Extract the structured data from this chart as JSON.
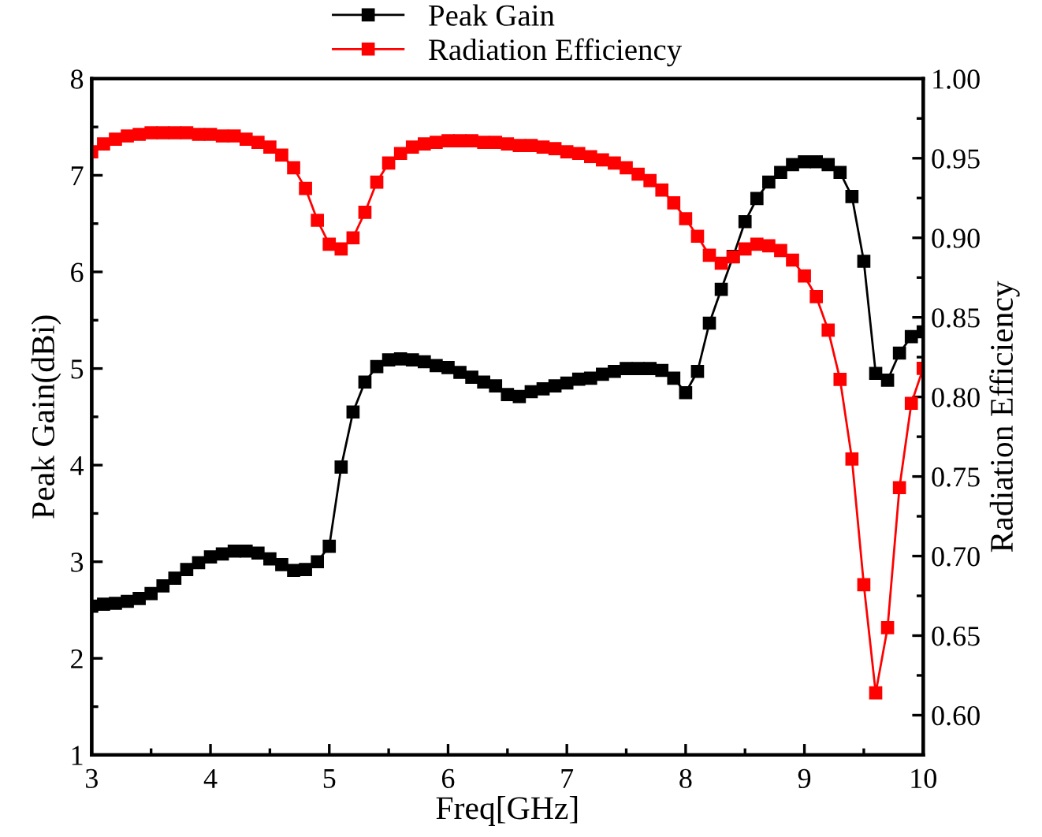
{
  "chart_data": {
    "type": "line",
    "xlabel": "Freq[GHz]",
    "ylabel": "Peak Gain(dBi)",
    "y2label": "Radiation Efficiency",
    "x": [
      3.0,
      3.1,
      3.2,
      3.3,
      3.4,
      3.5,
      3.6,
      3.7,
      3.8,
      3.9,
      4.0,
      4.1,
      4.2,
      4.3,
      4.4,
      4.5,
      4.6,
      4.7,
      4.8,
      4.9,
      5.0,
      5.1,
      5.2,
      5.3,
      5.4,
      5.5,
      5.6,
      5.7,
      5.8,
      5.9,
      6.0,
      6.1,
      6.2,
      6.3,
      6.4,
      6.5,
      6.6,
      6.7,
      6.8,
      6.9,
      7.0,
      7.1,
      7.2,
      7.3,
      7.4,
      7.5,
      7.6,
      7.7,
      7.8,
      7.9,
      8.0,
      8.1,
      8.2,
      8.3,
      8.4,
      8.5,
      8.6,
      8.7,
      8.8,
      8.9,
      9.0,
      9.1,
      9.2,
      9.3,
      9.4,
      9.5,
      9.6,
      9.7,
      9.8,
      9.9,
      10.0
    ],
    "series": [
      {
        "name": "Peak Gain",
        "color": "#000000",
        "values": [
          2.54,
          2.56,
          2.57,
          2.59,
          2.62,
          2.67,
          2.75,
          2.83,
          2.92,
          2.99,
          3.05,
          3.08,
          3.11,
          3.11,
          3.09,
          3.03,
          2.97,
          2.91,
          2.92,
          3.0,
          3.16,
          3.98,
          4.55,
          4.86,
          5.02,
          5.09,
          5.1,
          5.09,
          5.07,
          5.03,
          5.01,
          4.96,
          4.91,
          4.86,
          4.82,
          4.73,
          4.71,
          4.76,
          4.79,
          4.82,
          4.85,
          4.89,
          4.9,
          4.94,
          4.97,
          5.0,
          5.0,
          5.0,
          4.98,
          4.9,
          4.75,
          4.97,
          5.47,
          5.82,
          6.16,
          6.52,
          6.76,
          6.93,
          7.03,
          7.11,
          7.14,
          7.14,
          7.11,
          7.03,
          6.78,
          6.11,
          4.95,
          4.88,
          5.16,
          5.33,
          5.38
        ]
      },
      {
        "name": "Radiation Efficiency",
        "color": "#ff0000",
        "axis": "y2",
        "values": [
          0.954,
          0.959,
          0.962,
          0.964,
          0.965,
          0.966,
          0.966,
          0.966,
          0.966,
          0.965,
          0.965,
          0.964,
          0.964,
          0.962,
          0.96,
          0.957,
          0.952,
          0.944,
          0.931,
          0.911,
          0.896,
          0.893,
          0.9,
          0.916,
          0.935,
          0.947,
          0.953,
          0.957,
          0.959,
          0.96,
          0.961,
          0.961,
          0.961,
          0.96,
          0.96,
          0.959,
          0.958,
          0.958,
          0.957,
          0.956,
          0.954,
          0.953,
          0.951,
          0.949,
          0.947,
          0.944,
          0.94,
          0.936,
          0.93,
          0.922,
          0.912,
          0.901,
          0.889,
          0.884,
          0.888,
          0.893,
          0.896,
          0.895,
          0.892,
          0.886,
          0.876,
          0.863,
          0.842,
          0.811,
          0.761,
          0.682,
          0.614,
          0.655,
          0.743,
          0.796,
          0.818
        ]
      }
    ],
    "xlim": [
      3,
      10
    ],
    "xticks": [
      3,
      4,
      5,
      6,
      7,
      8,
      9,
      10
    ],
    "ylim": [
      1,
      8
    ],
    "yticks": [
      1,
      2,
      3,
      4,
      5,
      6,
      7,
      8
    ],
    "y2lim": [
      0.575,
      1.0
    ],
    "y2ticks": [
      {
        "value": 0.6,
        "label": "0.60"
      },
      {
        "value": 0.65,
        "label": "0.65"
      },
      {
        "value": 0.7,
        "label": "0.70"
      },
      {
        "value": 0.75,
        "label": "0.75"
      },
      {
        "value": 0.8,
        "label": "0.80"
      },
      {
        "value": 0.85,
        "label": "0.85"
      },
      {
        "value": 0.9,
        "label": "0.90"
      },
      {
        "value": 0.95,
        "label": "0.95"
      },
      {
        "value": 1.0,
        "label": "1.00"
      }
    ],
    "marker": "square",
    "line_style": "solid",
    "legend": "top",
    "grid": false
  }
}
